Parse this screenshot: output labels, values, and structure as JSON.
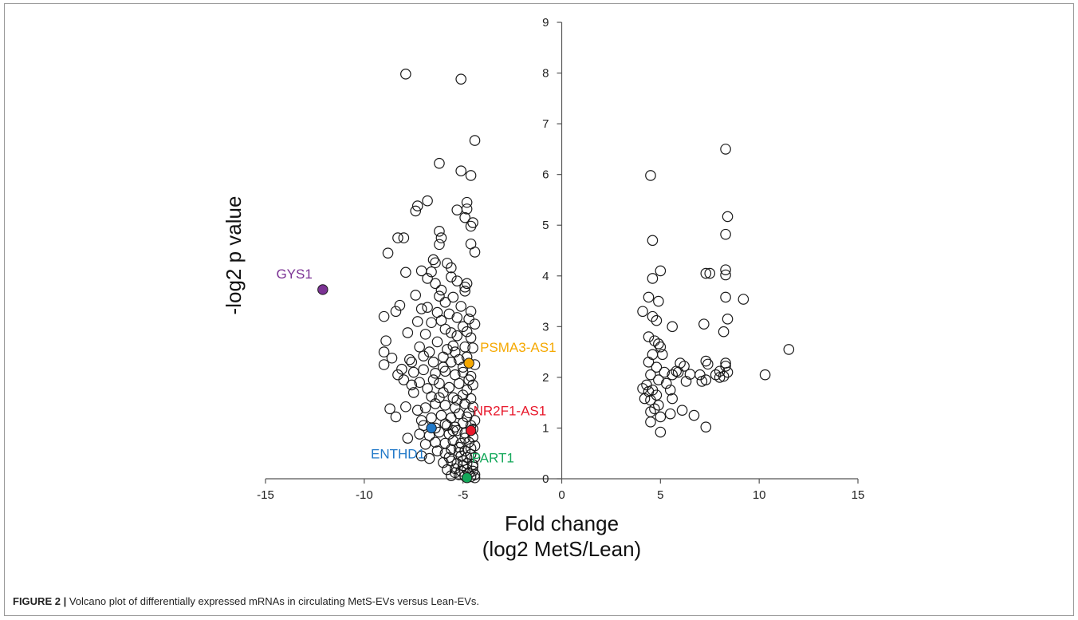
{
  "chart_data": {
    "type": "scatter",
    "title": "",
    "xlabel_lines": [
      "Fold change",
      "(log2 MetS/Lean)"
    ],
    "ylabel": "-log2 p value",
    "xlim": [
      -15,
      15
    ],
    "ylim": [
      0,
      9
    ],
    "x_ticks": [
      -15,
      -10,
      -5,
      0,
      5,
      10,
      15
    ],
    "y_ticks": [
      0,
      1,
      2,
      3,
      4,
      5,
      6,
      7,
      8,
      9
    ],
    "grid": false,
    "marker": "open-circle",
    "series": [
      {
        "points": [
          [
            -7.9,
            7.98
          ],
          [
            -5.1,
            7.88
          ],
          [
            -4.4,
            6.67
          ],
          [
            -6.2,
            6.22
          ],
          [
            -5.1,
            6.07
          ],
          [
            -4.6,
            5.98
          ],
          [
            -6.8,
            5.48
          ],
          [
            -7.3,
            5.38
          ],
          [
            -4.8,
            5.45
          ],
          [
            -7.4,
            5.28
          ],
          [
            -5.3,
            5.3
          ],
          [
            -4.8,
            5.32
          ],
          [
            -4.5,
            5.05
          ],
          [
            -4.9,
            5.15
          ],
          [
            -4.6,
            4.98
          ],
          [
            -8.3,
            4.75
          ],
          [
            -8.0,
            4.75
          ],
          [
            -6.2,
            4.88
          ],
          [
            -6.1,
            4.75
          ],
          [
            -6.2,
            4.62
          ],
          [
            -8.8,
            4.45
          ],
          [
            -6.5,
            4.32
          ],
          [
            -6.4,
            4.26
          ],
          [
            -4.6,
            4.63
          ],
          [
            -4.4,
            4.47
          ],
          [
            -5.8,
            4.25
          ],
          [
            -5.6,
            4.16
          ],
          [
            -5.6,
            3.98
          ],
          [
            -5.3,
            3.9
          ],
          [
            -4.8,
            3.85
          ],
          [
            -4.9,
            3.78
          ],
          [
            -4.9,
            3.7
          ],
          [
            -7.1,
            4.1
          ],
          [
            -7.9,
            4.07
          ],
          [
            -6.6,
            4.08
          ],
          [
            -6.8,
            3.95
          ],
          [
            -6.4,
            3.85
          ],
          [
            -6.1,
            3.72
          ],
          [
            -6.2,
            3.6
          ],
          [
            -5.5,
            3.58
          ],
          [
            -5.9,
            3.48
          ],
          [
            -7.4,
            3.62
          ],
          [
            -8.2,
            3.42
          ],
          [
            -8.4,
            3.3
          ],
          [
            -7.1,
            3.35
          ],
          [
            -6.8,
            3.38
          ],
          [
            -6.3,
            3.28
          ],
          [
            -5.7,
            3.25
          ],
          [
            -5.1,
            3.4
          ],
          [
            -4.6,
            3.3
          ],
          [
            -9.0,
            3.2
          ],
          [
            -7.3,
            3.1
          ],
          [
            -6.6,
            3.08
          ],
          [
            -6.1,
            3.12
          ],
          [
            -5.3,
            3.18
          ],
          [
            -4.7,
            3.15
          ],
          [
            -4.4,
            3.05
          ],
          [
            -7.8,
            2.88
          ],
          [
            -6.9,
            2.85
          ],
          [
            -5.9,
            2.95
          ],
          [
            -5.6,
            2.88
          ],
          [
            -5.3,
            2.82
          ],
          [
            -4.8,
            2.9
          ],
          [
            -4.6,
            2.78
          ],
          [
            -8.9,
            2.72
          ],
          [
            -7.2,
            2.6
          ],
          [
            -6.3,
            2.7
          ],
          [
            -5.5,
            2.62
          ],
          [
            -4.9,
            2.6
          ],
          [
            -4.5,
            2.58
          ],
          [
            -9.0,
            2.5
          ],
          [
            -8.6,
            2.38
          ],
          [
            -7.7,
            2.35
          ],
          [
            -7.0,
            2.42
          ],
          [
            -6.5,
            2.3
          ],
          [
            -6.0,
            2.4
          ],
          [
            -5.6,
            2.3
          ],
          [
            -5.2,
            2.35
          ],
          [
            -4.8,
            2.4
          ],
          [
            -4.4,
            2.25
          ],
          [
            -9.0,
            2.25
          ],
          [
            -8.1,
            2.16
          ],
          [
            -7.5,
            2.1
          ],
          [
            -7.0,
            2.15
          ],
          [
            -6.4,
            2.08
          ],
          [
            -5.9,
            2.12
          ],
          [
            -5.4,
            2.05
          ],
          [
            -5.0,
            2.1
          ],
          [
            -4.6,
            2.02
          ],
          [
            -8.0,
            1.95
          ],
          [
            -7.6,
            1.85
          ],
          [
            -7.2,
            1.9
          ],
          [
            -6.8,
            1.78
          ],
          [
            -6.2,
            1.88
          ],
          [
            -5.7,
            1.8
          ],
          [
            -5.2,
            1.88
          ],
          [
            -4.8,
            1.75
          ],
          [
            -4.5,
            1.85
          ],
          [
            -7.5,
            1.7
          ],
          [
            -6.6,
            1.62
          ],
          [
            -6.0,
            1.7
          ],
          [
            -5.5,
            1.6
          ],
          [
            -5.0,
            1.65
          ],
          [
            -4.6,
            1.58
          ],
          [
            -8.7,
            1.38
          ],
          [
            -8.4,
            1.22
          ],
          [
            -7.9,
            1.42
          ],
          [
            -7.3,
            1.35
          ],
          [
            -6.9,
            1.4
          ],
          [
            -6.4,
            1.48
          ],
          [
            -5.9,
            1.45
          ],
          [
            -5.4,
            1.4
          ],
          [
            -4.9,
            1.48
          ],
          [
            -4.5,
            1.42
          ],
          [
            -7.1,
            1.15
          ],
          [
            -6.6,
            1.2
          ],
          [
            -6.1,
            1.25
          ],
          [
            -5.6,
            1.2
          ],
          [
            -5.2,
            1.28
          ],
          [
            -4.8,
            1.22
          ],
          [
            -4.4,
            1.15
          ],
          [
            -7.0,
            1.05
          ],
          [
            -6.4,
            1.0
          ],
          [
            -5.9,
            1.08
          ],
          [
            -5.4,
            1.02
          ],
          [
            -5.0,
            1.1
          ],
          [
            -4.6,
            1.05
          ],
          [
            -7.8,
            0.8
          ],
          [
            -7.2,
            0.88
          ],
          [
            -6.7,
            0.85
          ],
          [
            -6.2,
            0.92
          ],
          [
            -5.7,
            0.88
          ],
          [
            -5.3,
            0.95
          ],
          [
            -4.9,
            0.9
          ],
          [
            -4.5,
            0.82
          ],
          [
            -6.9,
            0.68
          ],
          [
            -6.4,
            0.72
          ],
          [
            -5.9,
            0.7
          ],
          [
            -5.5,
            0.75
          ],
          [
            -5.1,
            0.7
          ],
          [
            -4.7,
            0.72
          ],
          [
            -4.4,
            0.65
          ],
          [
            -7.1,
            0.45
          ],
          [
            -6.7,
            0.4
          ],
          [
            -6.3,
            0.55
          ],
          [
            -5.9,
            0.5
          ],
          [
            -5.6,
            0.58
          ],
          [
            -5.2,
            0.52
          ],
          [
            -4.9,
            0.55
          ],
          [
            -4.6,
            0.48
          ],
          [
            -4.4,
            0.42
          ],
          [
            -6.0,
            0.32
          ],
          [
            -5.6,
            0.35
          ],
          [
            -5.3,
            0.3
          ],
          [
            -5.0,
            0.36
          ],
          [
            -4.8,
            0.3
          ],
          [
            -4.5,
            0.28
          ],
          [
            -5.8,
            0.18
          ],
          [
            -5.4,
            0.2
          ],
          [
            -5.1,
            0.15
          ],
          [
            -4.8,
            0.18
          ],
          [
            -4.5,
            0.15
          ],
          [
            -4.4,
            0.08
          ],
          [
            -5.6,
            0.06
          ],
          [
            -5.2,
            0.08
          ],
          [
            -4.9,
            0.05
          ],
          [
            -4.6,
            0.04
          ],
          [
            -4.4,
            0.02
          ],
          [
            -5.4,
            0.12
          ],
          [
            -4.7,
            0.1
          ],
          [
            -4.5,
            0.24
          ],
          [
            -5.0,
            0.26
          ],
          [
            -4.8,
            0.42
          ],
          [
            -5.2,
            0.62
          ],
          [
            -4.6,
            0.6
          ],
          [
            -4.9,
            0.8
          ],
          [
            -5.5,
            0.95
          ],
          [
            -4.7,
            1.3
          ],
          [
            -5.3,
            1.55
          ],
          [
            -4.7,
            1.95
          ],
          [
            -5.0,
            2.2
          ],
          [
            -5.4,
            2.5
          ],
          [
            -5.0,
            3.0
          ],
          [
            -5.8,
            2.55
          ],
          [
            -6.7,
            2.5
          ],
          [
            -6.0,
            2.2
          ],
          [
            -7.6,
            2.3
          ],
          [
            -6.5,
            1.95
          ],
          [
            -8.3,
            2.05
          ],
          [
            -5.8,
            1.05
          ],
          [
            -4.5,
            0.98
          ],
          [
            -5.1,
            0.45
          ],
          [
            -5.7,
            0.42
          ],
          [
            -6.2,
            1.6
          ],
          [
            4.1,
            1.78
          ],
          [
            4.2,
            1.58
          ],
          [
            4.4,
            1.72
          ],
          [
            4.3,
            1.85
          ],
          [
            4.6,
            1.75
          ],
          [
            4.8,
            1.65
          ],
          [
            4.5,
            1.55
          ],
          [
            4.7,
            1.38
          ],
          [
            4.5,
            1.32
          ],
          [
            5.0,
            1.22
          ],
          [
            4.9,
            1.45
          ],
          [
            4.5,
            1.12
          ],
          [
            5.0,
            0.92
          ],
          [
            4.1,
            3.3
          ],
          [
            4.4,
            3.58
          ],
          [
            4.6,
            3.2
          ],
          [
            4.9,
            3.5
          ],
          [
            4.8,
            3.12
          ],
          [
            4.4,
            2.8
          ],
          [
            4.7,
            2.72
          ],
          [
            4.9,
            2.66
          ],
          [
            5.0,
            2.6
          ],
          [
            4.6,
            2.45
          ],
          [
            4.4,
            2.3
          ],
          [
            5.1,
            2.45
          ],
          [
            4.8,
            2.2
          ],
          [
            4.5,
            2.05
          ],
          [
            4.9,
            1.95
          ],
          [
            5.3,
            1.88
          ],
          [
            5.2,
            2.1
          ],
          [
            5.6,
            2.05
          ],
          [
            5.5,
            1.75
          ],
          [
            5.8,
            2.12
          ],
          [
            6.0,
            2.28
          ],
          [
            5.9,
            2.1
          ],
          [
            6.2,
            2.22
          ],
          [
            6.5,
            2.06
          ],
          [
            6.3,
            1.92
          ],
          [
            5.6,
            1.58
          ],
          [
            6.1,
            1.35
          ],
          [
            6.7,
            1.25
          ],
          [
            5.5,
            1.28
          ],
          [
            5.6,
            3.0
          ],
          [
            5.0,
            4.1
          ],
          [
            4.6,
            3.95
          ],
          [
            4.6,
            4.7
          ],
          [
            4.5,
            5.98
          ],
          [
            7.1,
            1.92
          ],
          [
            7.0,
            2.05
          ],
          [
            7.3,
            2.32
          ],
          [
            7.4,
            2.26
          ],
          [
            7.3,
            1.95
          ],
          [
            7.2,
            3.05
          ],
          [
            7.3,
            4.05
          ],
          [
            7.5,
            4.05
          ],
          [
            7.3,
            1.02
          ],
          [
            7.8,
            2.05
          ],
          [
            8.0,
            2.12
          ],
          [
            8.2,
            2.02
          ],
          [
            8.3,
            2.28
          ],
          [
            8.4,
            2.1
          ],
          [
            8.2,
            2.9
          ],
          [
            8.4,
            3.15
          ],
          [
            8.3,
            3.58
          ],
          [
            8.3,
            4.02
          ],
          [
            8.3,
            4.12
          ],
          [
            8.3,
            4.82
          ],
          [
            8.4,
            5.17
          ],
          [
            8.3,
            6.5
          ],
          [
            9.2,
            3.54
          ],
          [
            10.3,
            2.05
          ],
          [
            11.5,
            2.55
          ],
          [
            8.3,
            2.22
          ],
          [
            8.0,
            2.0
          ]
        ]
      }
    ],
    "highlighted": [
      {
        "label": "GYS1",
        "x": -12.1,
        "y": 3.73,
        "color": "#7b3294"
      },
      {
        "label": "PSMA3-AS1",
        "x": -4.7,
        "y": 2.28,
        "color": "#f5a800"
      },
      {
        "label": "NR2F1-AS1",
        "x": -4.6,
        "y": 0.95,
        "color": "#e8192c"
      },
      {
        "label": "ENTHD1",
        "x": -6.6,
        "y": 1.0,
        "color": "#1f78c8"
      },
      {
        "label": "PART1",
        "x": -4.8,
        "y": 0.02,
        "color": "#14a85a"
      }
    ]
  },
  "caption": {
    "label": "FIGURE 2 |",
    "text": " Volcano plot of differentially expressed mRNAs in circulating MetS-EVs versus Lean-EVs."
  }
}
